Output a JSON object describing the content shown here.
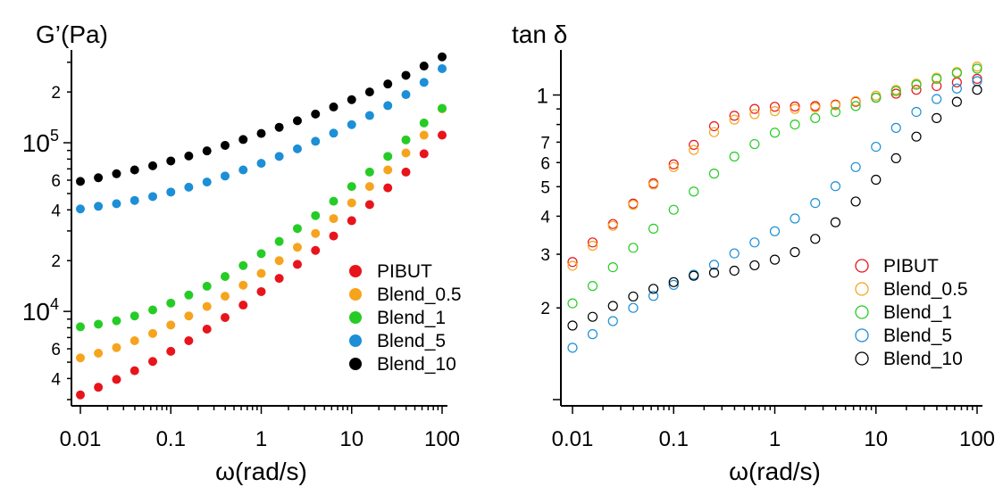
{
  "chart_data": [
    {
      "type": "scatter",
      "ylabel": "G’(Pa)",
      "xlabel": "ω(rad/s)",
      "x_scale": "log",
      "y_scale": "log",
      "xlim": [
        0.01,
        100
      ],
      "ylim": [
        3000,
        330000
      ],
      "x_tick_labels": [
        {
          "value": 0.01,
          "label": "0.01"
        },
        {
          "value": 0.1,
          "label": "0.1"
        },
        {
          "value": 1,
          "label": "1"
        },
        {
          "value": 10,
          "label": "10"
        },
        {
          "value": 100,
          "label": "100"
        }
      ],
      "y_decade_labels": [
        {
          "value": 10000,
          "base": "10",
          "exp": "4"
        },
        {
          "value": 100000,
          "base": "10",
          "exp": "5"
        }
      ],
      "y_minor_labels": [
        {
          "value": 4000,
          "label": "4"
        },
        {
          "value": 6000,
          "label": "6"
        },
        {
          "value": 20000,
          "label": "2"
        },
        {
          "value": 40000,
          "label": "4"
        },
        {
          "value": 60000,
          "label": "6"
        },
        {
          "value": 200000,
          "label": "2"
        }
      ],
      "marker": "filled",
      "legend_position": "bottom-right",
      "x": [
        0.01,
        0.0158,
        0.0251,
        0.0398,
        0.0631,
        0.1,
        0.158,
        0.251,
        0.398,
        0.631,
        1,
        1.58,
        2.51,
        3.98,
        6.31,
        10,
        15.8,
        25.1,
        39.8,
        63.1,
        100
      ],
      "series": [
        {
          "name": "PIBUT",
          "color": "#e8141c",
          "values": [
            3200,
            3550,
            3950,
            4450,
            5050,
            5800,
            6700,
            7850,
            9200,
            10900,
            13100,
            15700,
            19000,
            23000,
            28000,
            34500,
            43000,
            54000,
            67000,
            86000,
            111000
          ]
        },
        {
          "name": "Blend_0.5",
          "color": "#f6a41e",
          "values": [
            5300,
            5650,
            6100,
            6700,
            7400,
            8300,
            9400,
            10700,
            12300,
            14300,
            16800,
            20000,
            24000,
            29000,
            35500,
            44000,
            55000,
            69000,
            87000,
            111000,
            159000
          ]
        },
        {
          "name": "Blend_1",
          "color": "#26cc26",
          "values": [
            8100,
            8400,
            8800,
            9400,
            10200,
            11200,
            12500,
            14100,
            16100,
            18700,
            22000,
            26000,
            31000,
            37000,
            45000,
            55000,
            67000,
            83000,
            104000,
            131000,
            160000
          ]
        },
        {
          "name": "Blend_5",
          "color": "#1c8fd6",
          "values": [
            40500,
            42000,
            43500,
            45500,
            48000,
            51000,
            54500,
            58500,
            63500,
            69000,
            75500,
            83000,
            92000,
            102000,
            114000,
            128000,
            145000,
            166000,
            193000,
            228000,
            275000
          ]
        },
        {
          "name": "Blend_10",
          "color": "#000000",
          "values": [
            59000,
            62000,
            65500,
            69000,
            73000,
            78000,
            83500,
            89500,
            96500,
            104500,
            113500,
            123500,
            135000,
            148000,
            163000,
            180000,
            200000,
            223000,
            251000,
            285000,
            323000
          ]
        }
      ]
    },
    {
      "type": "scatter",
      "ylabel": "tan δ",
      "xlabel": "ω(rad/s)",
      "x_scale": "log",
      "y_scale": "log",
      "xlim": [
        0.01,
        100
      ],
      "ylim": [
        0.1,
        1.35
      ],
      "x_tick_labels": [
        {
          "value": 0.01,
          "label": "0.01"
        },
        {
          "value": 0.1,
          "label": "0.1"
        },
        {
          "value": 1,
          "label": "1"
        },
        {
          "value": 10,
          "label": "10"
        },
        {
          "value": 100,
          "label": "100"
        }
      ],
      "y_major_labels": [
        {
          "value": 1,
          "label": "1"
        }
      ],
      "y_minor_labels": [
        {
          "value": 0.2,
          "label": "2"
        },
        {
          "value": 0.3,
          "label": "3"
        },
        {
          "value": 0.4,
          "label": "4"
        },
        {
          "value": 0.5,
          "label": "5"
        },
        {
          "value": 0.6,
          "label": "6"
        },
        {
          "value": 0.7,
          "label": "7"
        }
      ],
      "marker": "open",
      "legend_position": "bottom-right",
      "x": [
        0.01,
        0.0158,
        0.0251,
        0.0398,
        0.0631,
        0.1,
        0.158,
        0.251,
        0.398,
        0.631,
        1,
        1.58,
        2.51,
        3.98,
        6.31,
        10,
        15.8,
        25.1,
        39.8,
        63.1,
        100
      ],
      "series": [
        {
          "name": "PIBUT",
          "color": "#e8141c",
          "values": [
            0.283,
            0.328,
            0.377,
            0.44,
            0.513,
            0.592,
            0.686,
            0.79,
            0.855,
            0.9,
            0.915,
            0.917,
            0.92,
            0.93,
            0.95,
            0.98,
            1.01,
            1.04,
            1.07,
            1.1,
            1.13
          ]
        },
        {
          "name": "Blend_0.5",
          "color": "#f6a41e",
          "values": [
            0.275,
            0.32,
            0.372,
            0.436,
            0.508,
            0.58,
            0.66,
            0.755,
            0.83,
            0.865,
            0.885,
            0.9,
            0.91,
            0.925,
            0.955,
            0.995,
            1.04,
            1.09,
            1.14,
            1.19,
            1.24
          ]
        },
        {
          "name": "Blend_1",
          "color": "#26cc26",
          "values": [
            0.207,
            0.236,
            0.272,
            0.315,
            0.364,
            0.42,
            0.482,
            0.552,
            0.628,
            0.69,
            0.752,
            0.8,
            0.84,
            0.88,
            0.92,
            0.98,
            1.03,
            1.08,
            1.13,
            1.18,
            1.22
          ]
        },
        {
          "name": "Blend_5",
          "color": "#1c8fd6",
          "values": [
            0.148,
            0.164,
            0.181,
            0.2,
            0.219,
            0.238,
            0.257,
            0.277,
            0.302,
            0.328,
            0.357,
            0.393,
            0.442,
            0.502,
            0.58,
            0.676,
            0.78,
            0.88,
            0.97,
            1.05,
            1.11
          ]
        },
        {
          "name": "Blend_10",
          "color": "#000000",
          "values": [
            0.175,
            0.187,
            0.203,
            0.218,
            0.231,
            0.243,
            0.255,
            0.261,
            0.265,
            0.276,
            0.288,
            0.305,
            0.337,
            0.382,
            0.447,
            0.527,
            0.62,
            0.73,
            0.84,
            0.95,
            1.04
          ]
        }
      ]
    }
  ]
}
